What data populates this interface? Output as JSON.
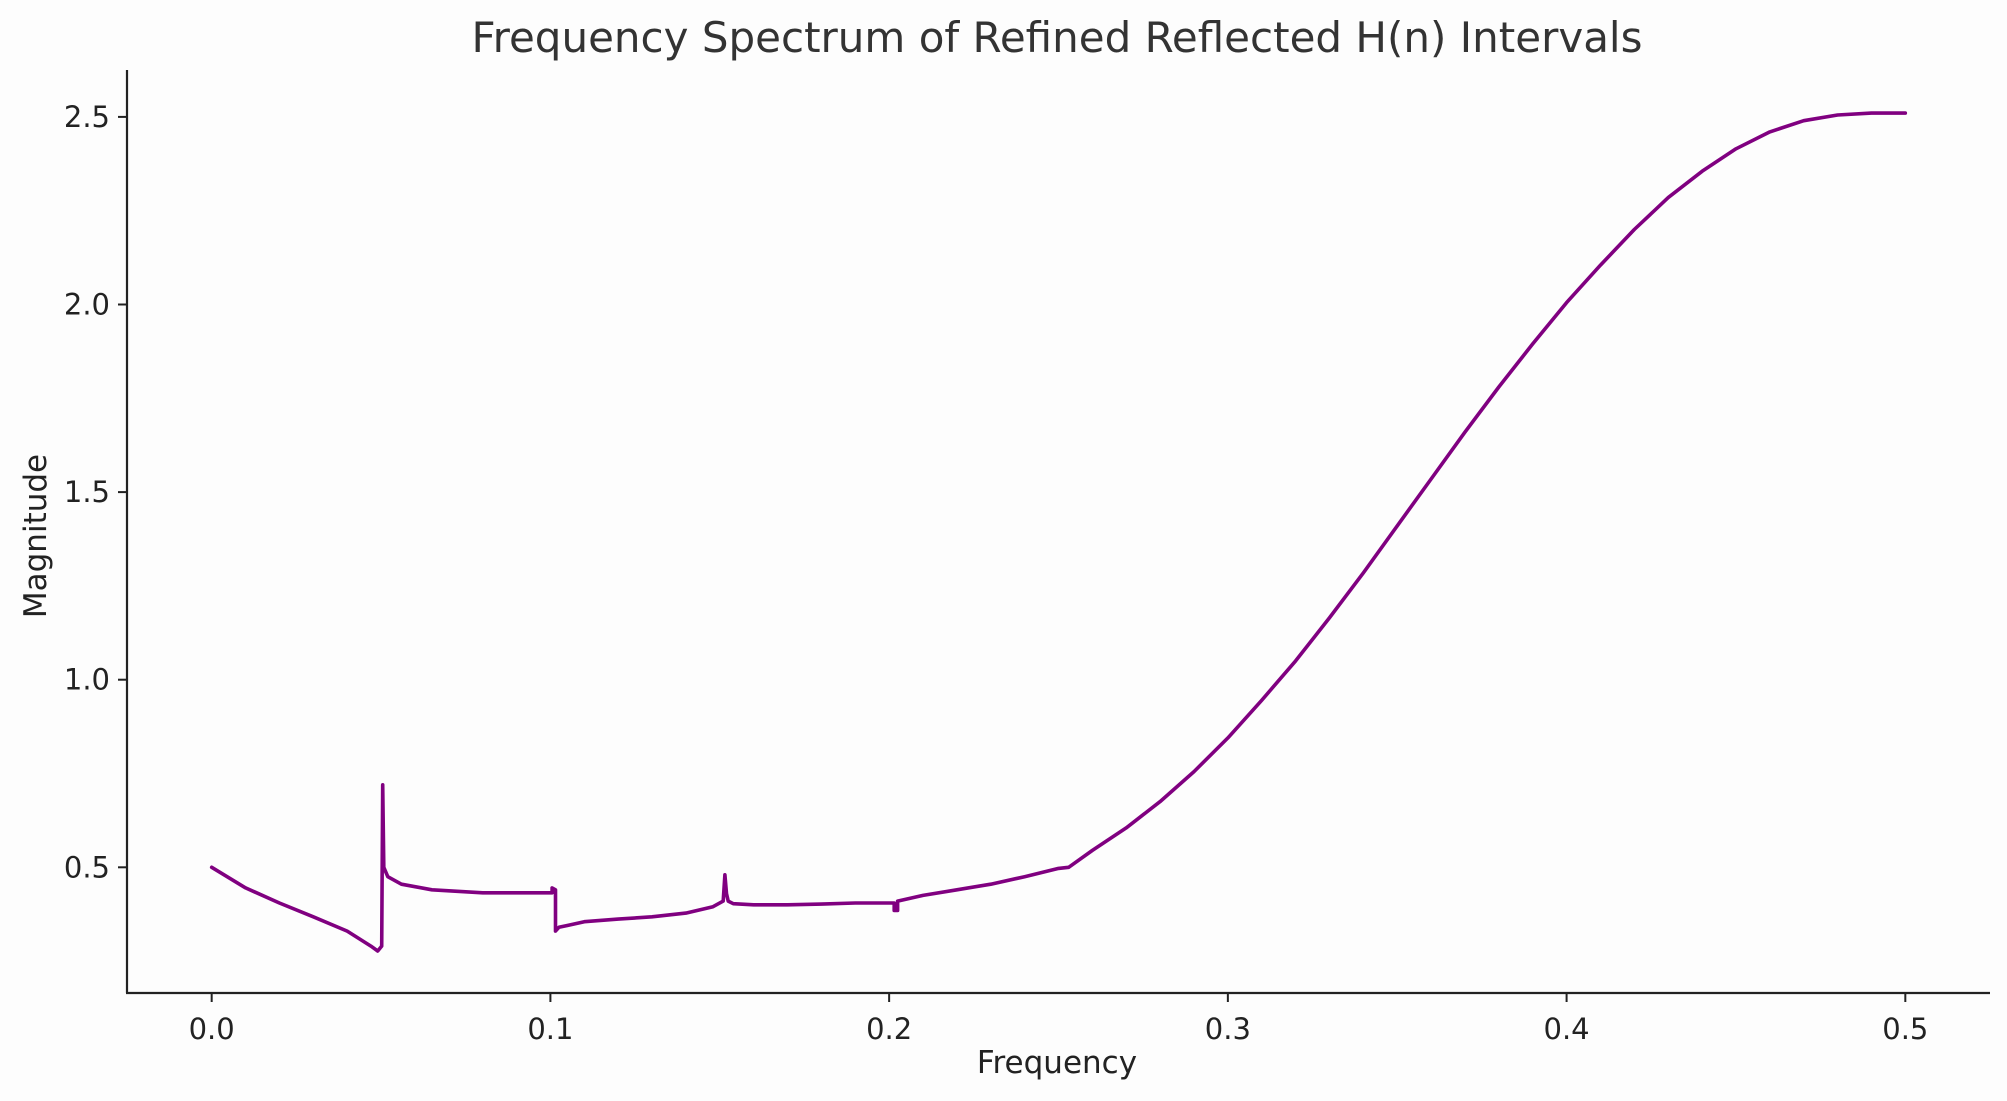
{
  "chart_data": {
    "type": "line",
    "title": "Frequency Spectrum of Refined Reflected H(n) Intervals",
    "xlabel": "Frequency",
    "ylabel": "Magnitude",
    "xlim": [
      -0.025,
      0.525
    ],
    "ylim": [
      0.165,
      2.625
    ],
    "grid": false,
    "legend": "none",
    "x_ticks": [
      {
        "value": 0.0,
        "label": "0.0"
      },
      {
        "value": 0.1,
        "label": "0.1"
      },
      {
        "value": 0.2,
        "label": "0.2"
      },
      {
        "value": 0.3,
        "label": "0.3"
      },
      {
        "value": 0.4,
        "label": "0.4"
      },
      {
        "value": 0.5,
        "label": "0.5"
      }
    ],
    "y_ticks": [
      {
        "value": 0.5,
        "label": "0.5"
      },
      {
        "value": 1.0,
        "label": "1.0"
      },
      {
        "value": 1.5,
        "label": "1.5"
      },
      {
        "value": 2.0,
        "label": "2.0"
      },
      {
        "value": 2.5,
        "label": "2.5"
      }
    ],
    "series": [
      {
        "color": "#800080",
        "x": [
          0.0,
          0.01,
          0.02,
          0.03,
          0.04,
          0.047,
          0.049,
          0.0502,
          0.0505,
          0.0508,
          0.052,
          0.056,
          0.065,
          0.08,
          0.09,
          0.1005,
          0.1005,
          0.1015,
          0.1015,
          0.1025,
          0.105,
          0.11,
          0.12,
          0.13,
          0.14,
          0.148,
          0.151,
          0.1515,
          0.152,
          0.1525,
          0.154,
          0.16,
          0.17,
          0.18,
          0.19,
          0.2015,
          0.2015,
          0.2025,
          0.2025,
          0.21,
          0.22,
          0.23,
          0.24,
          0.25,
          0.253,
          0.26,
          0.27,
          0.28,
          0.29,
          0.3,
          0.31,
          0.32,
          0.33,
          0.34,
          0.35,
          0.36,
          0.37,
          0.38,
          0.39,
          0.4,
          0.41,
          0.42,
          0.43,
          0.44,
          0.45,
          0.46,
          0.47,
          0.48,
          0.49,
          0.5
        ],
        "y": [
          0.5,
          0.445,
          0.405,
          0.368,
          0.33,
          0.29,
          0.277,
          0.29,
          0.72,
          0.5,
          0.475,
          0.455,
          0.44,
          0.432,
          0.432,
          0.432,
          0.445,
          0.44,
          0.33,
          0.34,
          0.345,
          0.355,
          0.362,
          0.368,
          0.378,
          0.395,
          0.41,
          0.48,
          0.43,
          0.41,
          0.403,
          0.4,
          0.4,
          0.402,
          0.405,
          0.405,
          0.385,
          0.385,
          0.41,
          0.425,
          0.44,
          0.455,
          0.475,
          0.497,
          0.5,
          0.545,
          0.605,
          0.675,
          0.755,
          0.845,
          0.945,
          1.05,
          1.165,
          1.285,
          1.41,
          1.535,
          1.66,
          1.78,
          1.895,
          2.005,
          2.105,
          2.2,
          2.285,
          2.355,
          2.415,
          2.46,
          2.49,
          2.505,
          2.51,
          2.51
        ]
      }
    ]
  }
}
